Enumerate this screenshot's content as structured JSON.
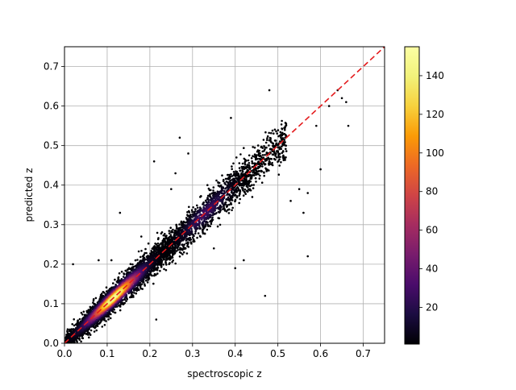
{
  "chart_data": {
    "type": "scatter",
    "xlabel": "spectroscopic z",
    "ylabel": "predicted z",
    "xlim": [
      0.0,
      0.75
    ],
    "ylim": [
      0.0,
      0.75
    ],
    "grid": true,
    "x_ticks": [
      "0.0",
      "0.1",
      "0.2",
      "0.3",
      "0.4",
      "0.5",
      "0.6",
      "0.7"
    ],
    "y_ticks": [
      "0.0",
      "0.1",
      "0.2",
      "0.3",
      "0.4",
      "0.5",
      "0.6",
      "0.7"
    ],
    "reference_line": {
      "style": "dashed",
      "color": "#e41a1c",
      "from": [
        0.0,
        0.0
      ],
      "to": [
        0.75,
        0.75
      ]
    },
    "colorbar": {
      "colormap": "inferno",
      "range": [
        1,
        155
      ],
      "ticks": [
        "20",
        "40",
        "60",
        "80",
        "100",
        "120",
        "140"
      ]
    },
    "outliers": [
      {
        "x": 0.48,
        "y": 0.64
      },
      {
        "x": 0.64,
        "y": 0.64
      },
      {
        "x": 0.65,
        "y": 0.62
      },
      {
        "x": 0.66,
        "y": 0.61
      },
      {
        "x": 0.665,
        "y": 0.55
      },
      {
        "x": 0.62,
        "y": 0.6
      },
      {
        "x": 0.39,
        "y": 0.57
      },
      {
        "x": 0.27,
        "y": 0.52
      },
      {
        "x": 0.6,
        "y": 0.44
      },
      {
        "x": 0.57,
        "y": 0.38
      },
      {
        "x": 0.57,
        "y": 0.22
      },
      {
        "x": 0.53,
        "y": 0.36
      },
      {
        "x": 0.47,
        "y": 0.12
      },
      {
        "x": 0.42,
        "y": 0.21
      },
      {
        "x": 0.4,
        "y": 0.19
      },
      {
        "x": 0.21,
        "y": 0.46
      },
      {
        "x": 0.215,
        "y": 0.06
      },
      {
        "x": 0.13,
        "y": 0.33
      },
      {
        "x": 0.18,
        "y": 0.27
      },
      {
        "x": 0.25,
        "y": 0.39
      },
      {
        "x": 0.26,
        "y": 0.43
      },
      {
        "x": 0.02,
        "y": 0.2
      },
      {
        "x": 0.08,
        "y": 0.21
      },
      {
        "x": 0.11,
        "y": 0.21
      },
      {
        "x": 0.29,
        "y": 0.48
      },
      {
        "x": 0.59,
        "y": 0.55
      },
      {
        "x": 0.55,
        "y": 0.39
      },
      {
        "x": 0.56,
        "y": 0.33
      },
      {
        "x": 0.44,
        "y": 0.37
      },
      {
        "x": 0.35,
        "y": 0.24
      }
    ]
  }
}
